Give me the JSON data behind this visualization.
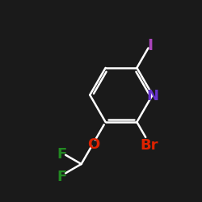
{
  "background_color": "#1a1a1a",
  "bond_color": "#ffffff",
  "atom_colors": {
    "F": "#228822",
    "O": "#dd2200",
    "Br": "#dd2200",
    "N": "#6633cc",
    "I": "#aa44bb",
    "C": "#ffffff"
  },
  "figsize": [
    2.5,
    2.5
  ],
  "dpi": 100,
  "font_size": 13
}
